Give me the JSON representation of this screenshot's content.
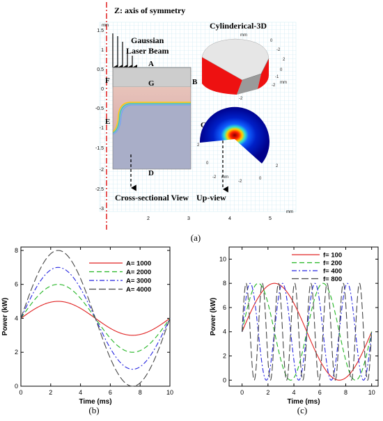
{
  "figure_a": {
    "axis_of_symmetry": "Z: axis of symmetry",
    "cylindrical_title": "Cylinderical-3D",
    "laser_label_1": "Gaussian",
    "laser_label_2": "Laser Beam",
    "unit_mm": "mm",
    "y_ticks": [
      "1.5",
      "1",
      "0.5",
      "0",
      "-0.5",
      "-1",
      "-1.5",
      "-2",
      "-2.5",
      "-3"
    ],
    "x_ticks": [
      "2",
      "3",
      "4",
      "5"
    ],
    "region_labels": {
      "A": "A",
      "B": "B",
      "C": "C",
      "D": "D",
      "E": "E",
      "F": "F",
      "G": "G"
    },
    "cross_sectional": "Cross-sectional View",
    "up_view": "Up-view",
    "cyl_axis_ticks_top": [
      "0",
      "-2"
    ],
    "cyl_axis_ticks_right": [
      "2",
      "0",
      "-1",
      "-2"
    ],
    "up_axis_ticks": [
      "-2",
      "0",
      "2",
      "2",
      "0",
      "-2",
      "-2",
      "0",
      "2"
    ],
    "caption": "(a)"
  },
  "chart_data": [
    {
      "type": "line",
      "caption": "(b)",
      "xlabel": "Time (ms)",
      "ylabel": "Power (kW)",
      "xlim": [
        0,
        10
      ],
      "ylim": [
        0,
        8.2
      ],
      "xticks": [
        "0",
        "2",
        "4",
        "6",
        "8",
        "10"
      ],
      "yticks": [
        "0",
        "2",
        "4",
        "6",
        "8"
      ],
      "series": [
        {
          "name": "A= 1000",
          "color": "#e02020",
          "dash": "solid",
          "amplitude_kw": 1,
          "offset_kw": 4,
          "freq_hz": 100
        },
        {
          "name": "A= 2000",
          "color": "#22b522",
          "dash": "7,4",
          "amplitude_kw": 2,
          "offset_kw": 4,
          "freq_hz": 100
        },
        {
          "name": "A= 3000",
          "color": "#2424e0",
          "dash": "7,3,2,3",
          "amplitude_kw": 3,
          "offset_kw": 4,
          "freq_hz": 100
        },
        {
          "name": "A= 4000",
          "color": "#444444",
          "dash": "10,4",
          "amplitude_kw": 4,
          "offset_kw": 4,
          "freq_hz": 100
        }
      ]
    },
    {
      "type": "line",
      "caption": "(c)",
      "xlabel": "Time (ms)",
      "ylabel": "Power (kW)",
      "xlim": [
        -1,
        10.5
      ],
      "ylim": [
        -0.5,
        11
      ],
      "xticks": [
        "0",
        "2",
        "4",
        "6",
        "8",
        "10"
      ],
      "yticks": [
        "0",
        "2",
        "4",
        "6",
        "8",
        "10"
      ],
      "series": [
        {
          "name": "f= 100",
          "color": "#e02020",
          "dash": "solid",
          "amplitude_kw": 4,
          "offset_kw": 4,
          "freq_hz": 100
        },
        {
          "name": "f= 200",
          "color": "#22b522",
          "dash": "7,4",
          "amplitude_kw": 4,
          "offset_kw": 4,
          "freq_hz": 200
        },
        {
          "name": "f= 400",
          "color": "#2424e0",
          "dash": "7,3,2,3",
          "amplitude_kw": 4,
          "offset_kw": 4,
          "freq_hz": 400
        },
        {
          "name": "f= 800",
          "color": "#444444",
          "dash": "10,4",
          "amplitude_kw": 4,
          "offset_kw": 4,
          "freq_hz": 800
        }
      ]
    }
  ]
}
